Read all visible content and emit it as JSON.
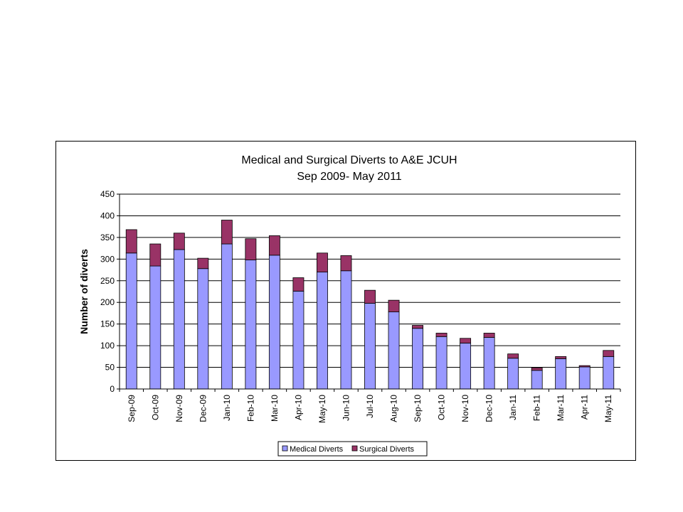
{
  "chart_data": {
    "type": "bar",
    "stacked": true,
    "title": "Medical and Surgical Diverts to A&E JCUH",
    "subtitle": "Sep 2009- May 2011",
    "xlabel": "",
    "ylabel": "Number of diverts",
    "ylim": [
      0,
      450
    ],
    "yticks": [
      0,
      50,
      100,
      150,
      200,
      250,
      300,
      350,
      400,
      450
    ],
    "grid": true,
    "legend": "bottom",
    "categories": [
      "Sep-09",
      "Oct-09",
      "Nov-09",
      "Dec-09",
      "Jan-10",
      "Feb-10",
      "Mar-10",
      "Apr-10",
      "May-10",
      "Jun-10",
      "Jul-10",
      "Aug-10",
      "Sep-10",
      "Oct-10",
      "Nov-10",
      "Dec-10",
      "Jan-11",
      "Feb-11",
      "Mar-11",
      "Apr-11",
      "May-11"
    ],
    "series": [
      {
        "name": "Medical Diverts",
        "color": "#9999ff",
        "values": [
          314,
          284,
          322,
          278,
          335,
          298,
          309,
          226,
          270,
          273,
          198,
          178,
          140,
          121,
          106,
          119,
          71,
          43,
          70,
          51,
          75
        ]
      },
      {
        "name": "Surgical Diverts",
        "color": "#993366",
        "values": [
          54,
          51,
          38,
          24,
          55,
          49,
          45,
          31,
          44,
          35,
          30,
          27,
          7,
          8,
          11,
          10,
          10,
          6,
          5,
          3,
          14
        ]
      }
    ]
  }
}
